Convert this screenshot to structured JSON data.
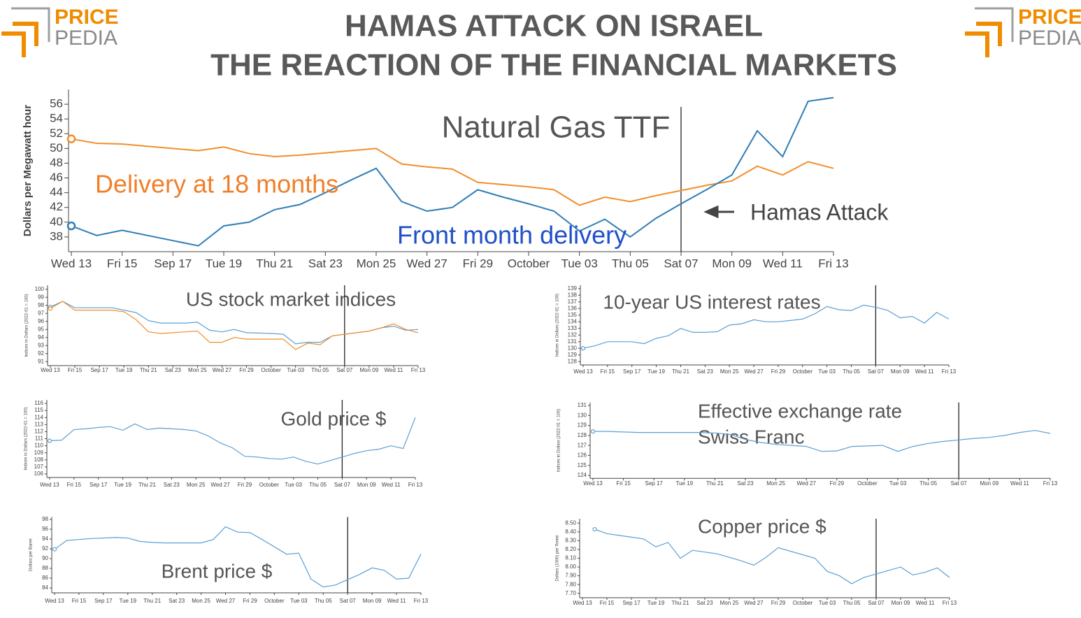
{
  "header": {
    "title": [
      "HAMAS ATTACK ON ISRAEL",
      "THE REACTION OF THE FINANCIAL MARKETS"
    ],
    "logo": [
      "PRICE",
      "PEDIA"
    ]
  },
  "chart_data": [
    {
      "type": "line",
      "title": "Natural Gas TTF",
      "y_label": "Dollars per Megawatt hour",
      "categories": [
        "Wed 13",
        null,
        "Fri 15",
        null,
        "Sep 17",
        null,
        "Tue 19",
        null,
        "Thu 21",
        null,
        "Sat 23",
        null,
        "Mon 25",
        null,
        "Wed 27",
        null,
        "Fri 29",
        null,
        "October",
        null,
        "Tue 03",
        null,
        "Thu 05",
        null,
        "Sat 07",
        null,
        "Mon 09",
        null,
        "Wed 11",
        null,
        "Fri 13"
      ],
      "series": [
        {
          "name": "Delivery at 18 months",
          "color": "#f28e2b",
          "label_color": "#f07f2a",
          "values": [
            51.3,
            50.7,
            50.6,
            50.3,
            50.0,
            49.7,
            50.2,
            49.3,
            48.9,
            49.1,
            49.4,
            49.7,
            50.0,
            47.9,
            47.5,
            47.2,
            45.4,
            45.1,
            44.8,
            44.4,
            42.3,
            43.4,
            42.8,
            43.6,
            44.3,
            45.0,
            45.6,
            47.6,
            46.4,
            48.2,
            47.3
          ]
        },
        {
          "name": "Front month delivery",
          "color": "#2e7db5",
          "label_color": "#1f4fc9",
          "values": [
            39.5,
            38.2,
            38.9,
            38.2,
            37.5,
            36.8,
            39.5,
            40.0,
            41.7,
            42.4,
            44.0,
            45.7,
            47.3,
            42.8,
            41.5,
            42.0,
            44.4,
            43.4,
            42.5,
            41.5,
            38.8,
            40.4,
            38.0,
            40.5,
            42.5,
            44.4,
            46.4,
            52.4,
            48.9,
            56.4,
            56.9
          ]
        }
      ],
      "ylim": [
        36,
        58
      ],
      "yticks": [
        38,
        40,
        42,
        44,
        46,
        48,
        50,
        52,
        54,
        56
      ],
      "event_index": 24,
      "annotation": "Hamas Attack"
    },
    {
      "type": "line",
      "title": "US stock market indices",
      "y_label": "Indices in Dollars (2022-01 = 100)",
      "categories": [
        "Wed 13",
        null,
        "Fri 15",
        null,
        "Sep 17",
        null,
        "Tue 19",
        null,
        "Thu 21",
        null,
        "Sat 23",
        null,
        "Mon 25",
        null,
        "Wed 27",
        null,
        "Fri 29",
        null,
        "October",
        null,
        "Tue 03",
        null,
        "Thu 05",
        null,
        "Sat 07",
        null,
        "Mon 09",
        null,
        "Wed 11",
        null,
        "Fri 13"
      ],
      "series": [
        {
          "color": "#5b9fd4",
          "values": [
            97.8,
            98.5,
            97.7,
            97.7,
            97.7,
            97.7,
            97.4,
            97.1,
            96.1,
            95.8,
            95.8,
            95.8,
            95.9,
            94.9,
            94.7,
            95.0,
            94.6,
            94.55,
            94.5,
            94.4,
            93.2,
            93.4,
            93.4,
            94.2,
            94.4,
            94.6,
            94.8,
            95.2,
            95.4,
            94.9,
            95.0
          ]
        },
        {
          "color": "#f28e2b",
          "values": [
            97.6,
            98.5,
            97.4,
            97.4,
            97.4,
            97.4,
            97.2,
            96.2,
            94.7,
            94.5,
            94.6,
            94.7,
            94.8,
            93.4,
            93.4,
            94.0,
            93.8,
            93.8,
            93.8,
            93.8,
            92.5,
            93.3,
            93.1,
            94.2,
            94.4,
            94.6,
            94.8,
            95.2,
            95.7,
            95.0,
            94.6
          ]
        }
      ],
      "ylim": [
        90.5,
        100.5
      ],
      "yticks": [
        91,
        92,
        93,
        94,
        95,
        96,
        97,
        98,
        99,
        100
      ],
      "event_index": 24
    },
    {
      "type": "line",
      "title": "10-year US interest rates",
      "y_label": "Indices in Dollars (2022-01 = 100)",
      "categories": [
        "Wed 13",
        null,
        "Fri 15",
        null,
        "Sep 17",
        null,
        "Tue 19",
        null,
        "Thu 21",
        null,
        "Sat 23",
        null,
        "Mon 25",
        null,
        "Wed 27",
        null,
        "Fri 29",
        null,
        "October",
        null,
        "Tue 03",
        null,
        "Thu 05",
        null,
        "Sat 07",
        null,
        "Mon 09",
        null,
        "Wed 11",
        null,
        "Fri 13"
      ],
      "series": [
        {
          "color": "#5b9fd4",
          "values": [
            130.0,
            130.4,
            131.0,
            131.0,
            131.0,
            130.7,
            131.5,
            131.9,
            133.0,
            132.4,
            132.4,
            132.5,
            133.5,
            133.7,
            134.3,
            134.0,
            134.0,
            134.2,
            134.4,
            135.2,
            136.3,
            135.8,
            135.7,
            136.5,
            136.2,
            135.7,
            134.6,
            134.8,
            133.8,
            135.4,
            134.4
          ]
        }
      ],
      "ylim": [
        127.5,
        139.5
      ],
      "yticks": [
        128,
        129,
        130,
        131,
        132,
        133,
        134,
        135,
        136,
        137,
        138,
        139
      ],
      "event_index": 24
    },
    {
      "type": "line",
      "title": "Gold price $",
      "y_label": "Indices in Dollars (2022-01 = 100)",
      "categories": [
        "Wed 13",
        null,
        "Fri 15",
        null,
        "Sep 17",
        null,
        "Tue 19",
        null,
        "Thu 21",
        null,
        "Sat 23",
        null,
        "Mon 25",
        null,
        "Wed 27",
        null,
        "Fri 29",
        null,
        "October",
        null,
        "Tue 03",
        null,
        "Thu 05",
        null,
        "Sat 07",
        null,
        "Mon 09",
        null,
        "Wed 11",
        null,
        "Fri 13"
      ],
      "series": [
        {
          "color": "#5b9fd4",
          "values": [
            110.7,
            110.8,
            112.3,
            112.4,
            112.6,
            112.7,
            112.2,
            113.1,
            112.3,
            112.5,
            112.4,
            112.3,
            112.1,
            111.4,
            110.4,
            109.7,
            108.5,
            108.4,
            108.2,
            108.1,
            108.4,
            107.8,
            107.4,
            107.9,
            108.4,
            108.9,
            109.3,
            109.5,
            110.0,
            109.6,
            114.0
          ]
        }
      ],
      "ylim": [
        105.5,
        116.5
      ],
      "yticks": [
        106,
        107,
        108,
        109,
        110,
        111,
        112,
        113,
        114,
        115,
        116
      ],
      "event_index": 24
    },
    {
      "type": "line",
      "title": [
        "Effective exchange rate",
        "Swiss Franc"
      ],
      "y_label": "Indices in Dollars (2022-01 = 100)",
      "categories": [
        "Wed 13",
        null,
        "Fri 15",
        null,
        "Sep 17",
        null,
        "Tue 19",
        null,
        "Thu 21",
        null,
        "Sat 23",
        null,
        "Mon 25",
        null,
        "Wed 27",
        null,
        "Fri 29",
        null,
        "October",
        null,
        "Tue 03",
        null,
        "Thu 05",
        null,
        "Sat 07",
        null,
        "Mon 09",
        null,
        "Wed 11",
        null,
        "Fri 13"
      ],
      "series": [
        {
          "color": "#5b9fd4",
          "values": [
            128.4,
            128.4,
            128.35,
            128.3,
            128.3,
            128.3,
            128.3,
            128.3,
            128.25,
            128.1,
            127.6,
            127.3,
            127.1,
            127.0,
            126.9,
            126.4,
            126.45,
            126.9,
            126.95,
            127.0,
            126.4,
            126.9,
            127.2,
            127.4,
            127.55,
            127.7,
            127.8,
            128.0,
            128.3,
            128.5,
            128.2
          ]
        }
      ],
      "ylim": [
        123.7,
        131.3
      ],
      "yticks": [
        124,
        125,
        126,
        127,
        128,
        129,
        130,
        131
      ],
      "event_index": 24
    },
    {
      "type": "line",
      "title": "Brent price $",
      "y_label": "Dollars per Barrel",
      "categories": [
        "Wed 13",
        null,
        "Fri 15",
        null,
        "Sep 17",
        null,
        "Tue 19",
        null,
        "Thu 21",
        null,
        "Sat 23",
        null,
        "Mon 25",
        null,
        "Wed 27",
        null,
        "Fri 29",
        null,
        "October",
        null,
        "Tue 03",
        null,
        "Thu 05",
        null,
        "Sat 07",
        null,
        "Mon 09",
        null,
        "Wed 11",
        null,
        "Fri 13"
      ],
      "series": [
        {
          "color": "#5b9fd4",
          "values": [
            91.9,
            93.7,
            93.9,
            94.1,
            94.2,
            94.3,
            94.2,
            93.5,
            93.3,
            93.2,
            93.2,
            93.2,
            93.2,
            93.9,
            96.5,
            95.4,
            95.3,
            93.9,
            92.4,
            90.9,
            91.1,
            85.8,
            84.2,
            84.6,
            85.7,
            86.8,
            88.1,
            87.6,
            85.8,
            86.0,
            90.9
          ]
        }
      ],
      "ylim": [
        83,
        98.5
      ],
      "yticks": [
        84,
        86,
        88,
        90,
        92,
        94,
        96,
        98
      ],
      "event_index": 24
    },
    {
      "type": "line",
      "title": "Copper price $",
      "y_label": "Dollars (1000) per Tonne",
      "categories": [
        "Wed 13",
        null,
        "Fri 15",
        null,
        "Sep 17",
        null,
        "Tue 19",
        null,
        "Thu 21",
        null,
        "Sat 23",
        null,
        "Mon 25",
        null,
        "Wed 27",
        null,
        "Fri 29",
        null,
        "October",
        null,
        "Tue 03",
        null,
        "Thu 05",
        null,
        "Sat 07",
        null,
        "Mon 09",
        null,
        "Wed 11",
        null,
        "Fri 13"
      ],
      "series": [
        {
          "color": "#5b9fd4",
          "values": [
            null,
            8.43,
            8.38,
            8.36,
            8.34,
            8.32,
            8.23,
            8.28,
            8.1,
            8.19,
            8.17,
            8.15,
            8.11,
            8.07,
            8.02,
            8.11,
            8.22,
            8.18,
            8.14,
            8.1,
            7.95,
            7.9,
            7.81,
            7.88,
            7.92,
            7.96,
            8.0,
            7.91,
            7.94,
            7.99,
            7.88
          ]
        }
      ],
      "ylim": [
        7.65,
        8.55
      ],
      "yticks": [
        {
          "value": 7.7,
          "label": "7.70"
        },
        {
          "value": 7.8,
          "label": "7.80"
        },
        {
          "value": 7.9,
          "label": "7.90"
        },
        {
          "value": 8,
          "label": "8.00"
        },
        {
          "value": 8.1,
          "label": "8.10"
        },
        {
          "value": 8.2,
          "label": "8.20"
        },
        {
          "value": 8.3,
          "label": "8.30"
        },
        {
          "value": 8.4,
          "label": "8.40"
        },
        {
          "value": 8.5,
          "label": "8.50"
        }
      ],
      "event_index": 24
    }
  ]
}
